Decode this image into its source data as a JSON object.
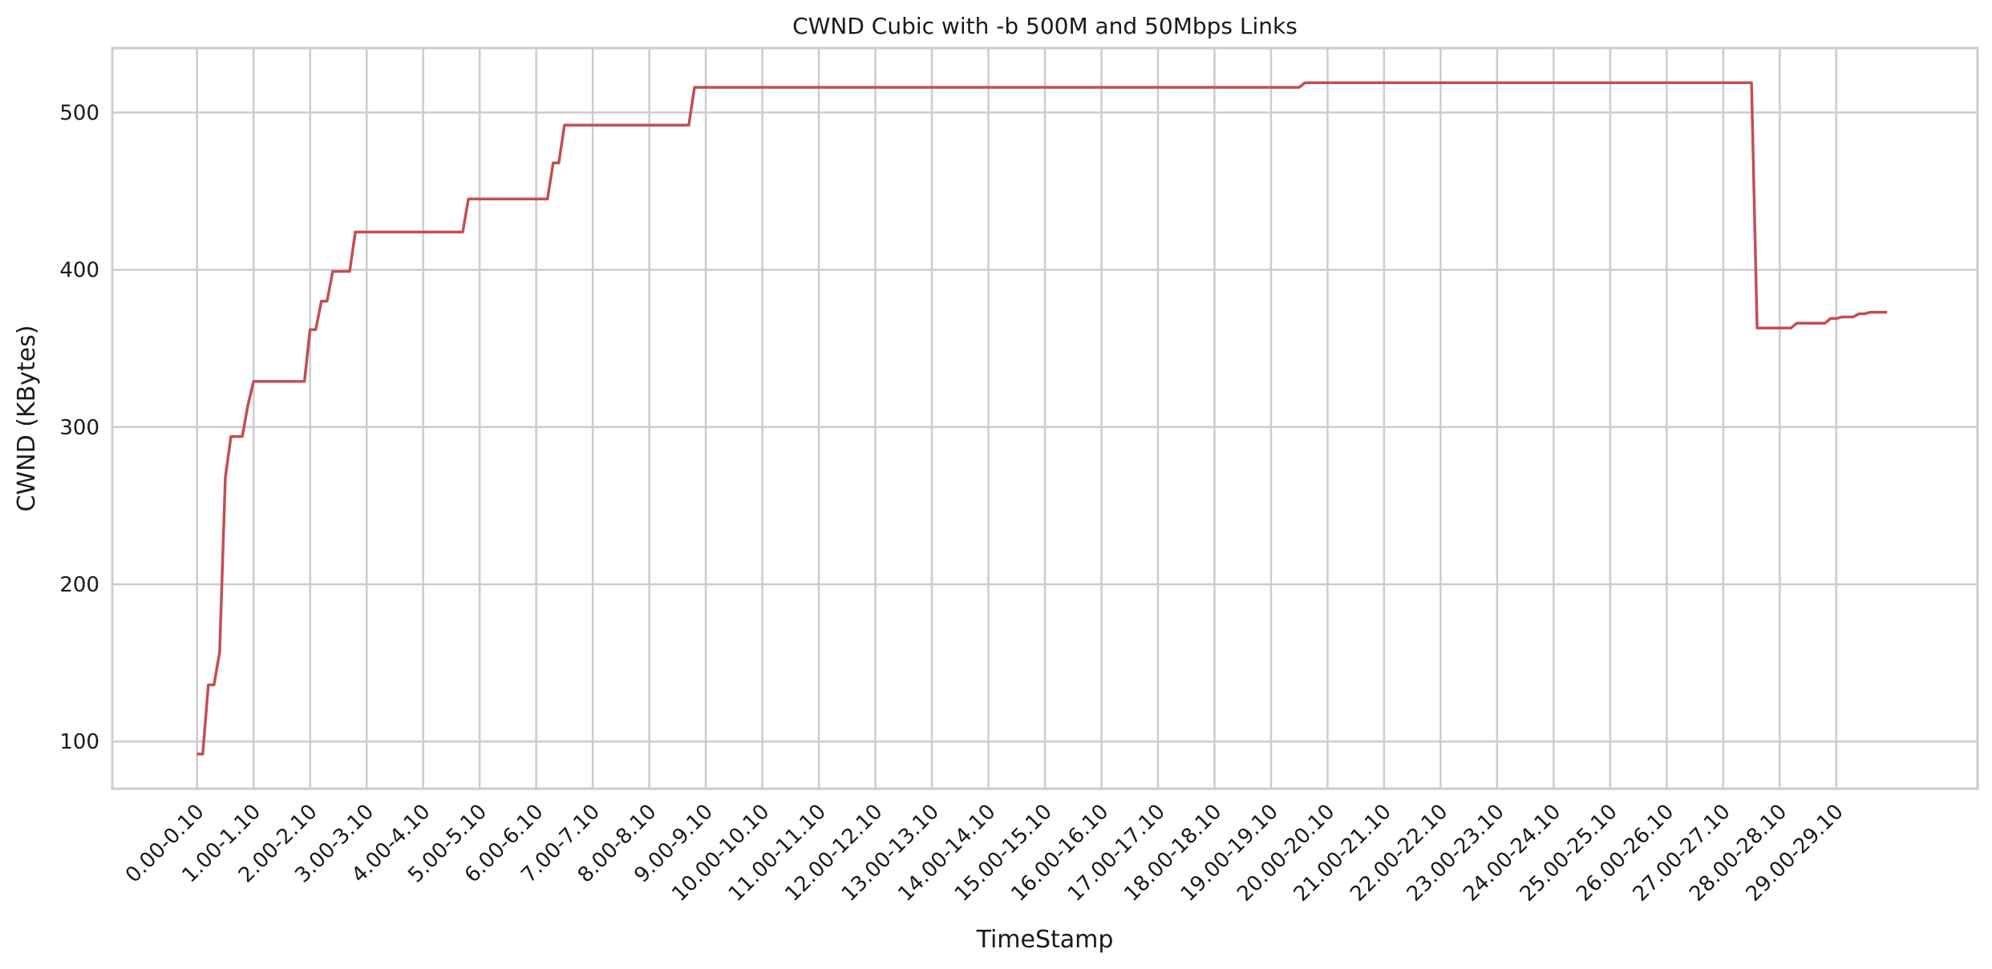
{
  "chart_data": {
    "type": "line",
    "title": "CWND Cubic with -b 500M and 50Mbps Links",
    "xlabel": "TimeStamp",
    "ylabel": "CWND (KBytes)",
    "ylim": [
      70,
      541
    ],
    "xlim": [
      -1.5,
      31.5
    ],
    "grid": true,
    "yticks": [
      100,
      200,
      300,
      400,
      500
    ],
    "categories": [
      "0.00-0.10",
      "1.00-1.10",
      "2.00-2.10",
      "3.00-3.10",
      "4.00-4.10",
      "5.00-5.10",
      "6.00-6.10",
      "7.00-7.10",
      "8.00-8.10",
      "9.00-9.10",
      "10.00-10.10",
      "11.00-11.10",
      "12.00-12.10",
      "13.00-13.10",
      "14.00-14.10",
      "15.00-15.10",
      "16.00-16.10",
      "17.00-17.10",
      "18.00-18.10",
      "19.00-19.10",
      "20.00-20.10",
      "21.00-21.10",
      "22.00-22.10",
      "23.00-23.10",
      "24.00-24.10",
      "25.00-25.10",
      "26.00-26.10",
      "27.00-27.10",
      "28.00-28.10",
      "29.00-29.10"
    ],
    "series": [
      {
        "color": "#c44e52",
        "points": [
          [
            0.0,
            92
          ],
          [
            0.1,
            92
          ],
          [
            0.2,
            136
          ],
          [
            0.3,
            136
          ],
          [
            0.4,
            157
          ],
          [
            0.5,
            268
          ],
          [
            0.6,
            294
          ],
          [
            0.7,
            294
          ],
          [
            0.8,
            294
          ],
          [
            0.9,
            314
          ],
          [
            1.0,
            329
          ],
          [
            1.1,
            329
          ],
          [
            1.9,
            329
          ],
          [
            2.0,
            362
          ],
          [
            2.1,
            362
          ],
          [
            2.2,
            380
          ],
          [
            2.3,
            380
          ],
          [
            2.4,
            399
          ],
          [
            2.5,
            399
          ],
          [
            2.6,
            399
          ],
          [
            2.7,
            399
          ],
          [
            2.8,
            424
          ],
          [
            3.0,
            424
          ],
          [
            4.7,
            424
          ],
          [
            4.8,
            445
          ],
          [
            6.0,
            445
          ],
          [
            6.2,
            445
          ],
          [
            6.3,
            468
          ],
          [
            6.4,
            468
          ],
          [
            6.5,
            492
          ],
          [
            8.7,
            492
          ],
          [
            8.8,
            516
          ],
          [
            19.5,
            516
          ],
          [
            19.6,
            519
          ],
          [
            27.5,
            519
          ],
          [
            27.6,
            363
          ],
          [
            28.0,
            363
          ],
          [
            28.2,
            363
          ],
          [
            28.3,
            366
          ],
          [
            28.8,
            366
          ],
          [
            28.9,
            369
          ],
          [
            29.0,
            369
          ],
          [
            29.1,
            370
          ],
          [
            29.3,
            370
          ],
          [
            29.4,
            372
          ],
          [
            29.5,
            372
          ],
          [
            29.6,
            373
          ],
          [
            29.9,
            373
          ]
        ]
      }
    ]
  }
}
